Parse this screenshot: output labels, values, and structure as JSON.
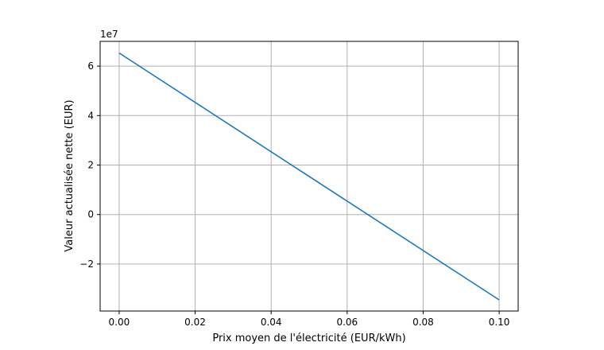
{
  "chart_data": {
    "type": "line",
    "title": "",
    "xlabel": "Prix moyen de l'électricité (EUR/kWh)",
    "ylabel": "Valeur actualisée nette (EUR)",
    "y_offset_text": "1e7",
    "xlim": [
      -0.005,
      0.105
    ],
    "ylim": [
      -39000000,
      70000000
    ],
    "grid": true,
    "x_ticks": [
      0.0,
      0.02,
      0.04,
      0.06,
      0.08,
      0.1
    ],
    "x_tick_labels": [
      "0.00",
      "0.02",
      "0.04",
      "0.06",
      "0.08",
      "0.10"
    ],
    "y_ticks": [
      -20000000,
      0,
      20000000,
      40000000,
      60000000
    ],
    "y_tick_labels": [
      "−2",
      "0",
      "2",
      "4",
      "6"
    ],
    "series": [
      {
        "color": "#1f77b4",
        "x": [
          0.0,
          0.1
        ],
        "y": [
          65300000,
          -34500000
        ]
      }
    ]
  }
}
